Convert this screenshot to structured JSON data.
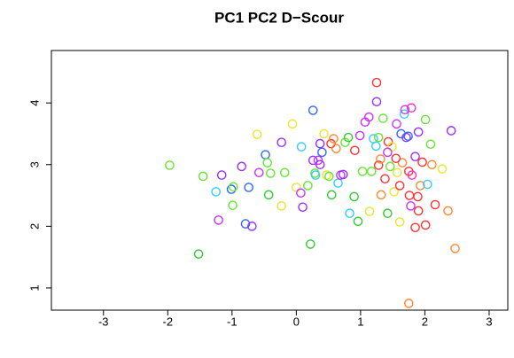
{
  "chart_data": {
    "type": "scatter",
    "title": "PC1 PC2 D−Scour",
    "x": [
      -1.97,
      -1.52,
      -1.45,
      -1.25,
      -1.21,
      -1.16,
      -1.01,
      -0.98,
      -0.99,
      -0.85,
      -0.79,
      -0.74,
      -0.69,
      -0.61,
      -0.58,
      -0.48,
      -0.45,
      -0.43,
      -0.4,
      -0.23,
      -0.23,
      -0.18,
      -0.06,
      0,
      0.08,
      0.1,
      0.07,
      0.18,
      0.22,
      0.26,
      0.26,
      0.29,
      0.34,
      0.37,
      0.37,
      0.4,
      0.43,
      0.47,
      0.51,
      0.54,
      0.55,
      0.58,
      0.65,
      0.69,
      0.73,
      0.76,
      0.81,
      0.83,
      0.9,
      0.91,
      0.96,
      0.99,
      1.03,
      1.07,
      1.13,
      1.14,
      1.17,
      1.2,
      1.24,
      1.25,
      1.25,
      1.28,
      1.31,
      1.32,
      1.35,
      1.38,
      1.42,
      1.43,
      1.46,
      1.49,
      1.52,
      1.56,
      1.57,
      1.61,
      1.63,
      1.65,
      1.68,
      1.69,
      1.71,
      1.74,
      1.75,
      1.75,
      1.76,
      1.78,
      1.79,
      1.8,
      1.85,
      1.85,
      1.89,
      1.9,
      1.9,
      1.93,
      2.01,
      2.01,
      2.04,
      2.09,
      2.11,
      2.16,
      2.27,
      2.36,
      2.41,
      2.47,
      1.55,
      1.28,
      1.42,
      1.96,
      0.3,
      0.62,
      1.61
    ],
    "y": [
      2.99,
      1.55,
      2.81,
      2.56,
      2.1,
      2.83,
      2.6,
      2.64,
      2.34,
      2.97,
      2.04,
      2.63,
      2.0,
      3.49,
      2.87,
      3.16,
      3.03,
      2.51,
      2.86,
      3.36,
      2.33,
      2.87,
      3.66,
      2.63,
      3.29,
      2.31,
      2.54,
      2.66,
      1.71,
      3.88,
      3.07,
      2.86,
      3.07,
      3.34,
      3.0,
      3.2,
      3.5,
      2.83,
      2.81,
      3.34,
      2.51,
      3.42,
      2.7,
      2.83,
      2.84,
      3.36,
      3.44,
      2.21,
      2.48,
      3.23,
      2.08,
      3.47,
      2.89,
      3.69,
      3.77,
      2.24,
      2.89,
      3.42,
      3.3,
      4.33,
      4.02,
      2.99,
      3.09,
      2.51,
      3.75,
      2.77,
      2.21,
      3.37,
      2.97,
      3.29,
      2.56,
      3.66,
      2.87,
      2.07,
      3.5,
      3.03,
      3.82,
      3.89,
      3.44,
      3.46,
      2.89,
      0.75,
      2.5,
      2.33,
      3.92,
      2.83,
      3.13,
      1.98,
      2.48,
      3.53,
      2.25,
      2.66,
      2.02,
      3.73,
      2.68,
      3.33,
      3.0,
      2.35,
      2.93,
      2.25,
      3.55,
      1.64,
      3.1,
      3.44,
      3.2,
      3.04,
      2.83,
      3.26,
      2.66
    ],
    "colors": [
      "#66e633",
      "#33cc33",
      "#66e633",
      "#33ccff",
      "#cc33ff",
      "#9933ff",
      "#3366ff",
      "#66e633",
      "#66e633",
      "#9933ff",
      "#3366ff",
      "#3366ff",
      "#9933ff",
      "#e6e633",
      "#cc33ff",
      "#3366ff",
      "#66e633",
      "#33cc33",
      "#66e633",
      "#9933ff",
      "#e6e633",
      "#66e633",
      "#e6e633",
      "#e6e633",
      "#33ccff",
      "#9933ff",
      "#cc33ff",
      "#66e633",
      "#33cc33",
      "#3366ff",
      "#9933ff",
      "#66e633",
      "#cc33ff",
      "#9933ff",
      "#9933ff",
      "#3366ff",
      "#e6e633",
      "#e6e633",
      "#66e633",
      "#ff3333",
      "#33cc33",
      "#ff8833",
      "#33ccff",
      "#cc33ff",
      "#9933ff",
      "#66e633",
      "#33cc33",
      "#33ccff",
      "#33cc33",
      "#ff3333",
      "#33cc33",
      "#cc33ff",
      "#66e633",
      "#cc33ff",
      "#cc33ff",
      "#e6e633",
      "#66e633",
      "#33ccff",
      "#33ccff",
      "#ff3333",
      "#9933ff",
      "#ff3333",
      "#ff8833",
      "#ff8833",
      "#66e633",
      "#ff3333",
      "#33cc33",
      "#ff3333",
      "#66e633",
      "#e6e633",
      "#e6e633",
      "#cc33ff",
      "#e6e633",
      "#e6e633",
      "#3366ff",
      "#ff8833",
      "#33ccff",
      "#cc33ff",
      "#9933ff",
      "#3366ff",
      "#ff3333",
      "#ff8833",
      "#ff3333",
      "#cc33ff",
      "#ff33cc",
      "#ff33cc",
      "#9933ff",
      "#ff3333",
      "#ff3333",
      "#9933ff",
      "#ff3333",
      "#ff8833",
      "#ff3333",
      "#66e633",
      "#33ccff",
      "#66e633",
      "#ff8833",
      "#ff3333",
      "#e6e633",
      "#ff8833",
      "#9933ff",
      "#ff8833",
      "#ff3333",
      "#66e633",
      "#cc33ff",
      "#ff3333",
      "#33ccff",
      "#ff8833",
      "#ff3333"
    ],
    "xlim": [
      -3.81,
      3.29
    ],
    "ylim": [
      0.64,
      4.85
    ],
    "xticks": [
      -3,
      -2,
      -1,
      0,
      1,
      2,
      3
    ],
    "yticks": [
      1,
      2,
      3,
      4
    ]
  }
}
